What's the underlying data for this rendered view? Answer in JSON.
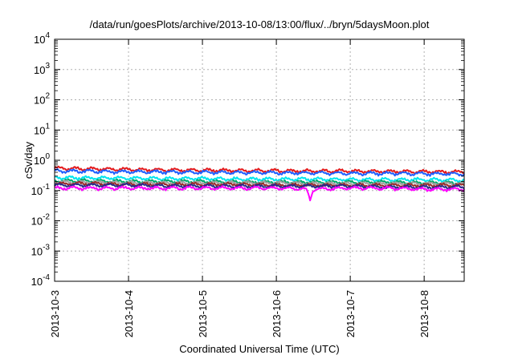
{
  "chart_data": {
    "type": "line",
    "title": "/data/run/goesPlots/archive/2013-10-08/13:00/flux/../bryn/5daysMoon.plot",
    "xlabel": "Coordinated Universal Time (UTC)",
    "ylabel": "cSv/day",
    "yscale": "log",
    "ylim": [
      0.0001,
      10000
    ],
    "xlim": [
      "2013-10-03",
      "2013-10-08 13:00"
    ],
    "grid": true,
    "x_tick_labels": [
      "2013-10-3",
      "2013-10-4",
      "2013-10-5",
      "2013-10-6",
      "2013-10-7",
      "2013-10-8"
    ],
    "y_tick_labels": [
      {
        "base": "10",
        "exp": "-4"
      },
      {
        "base": "10",
        "exp": "-3"
      },
      {
        "base": "10",
        "exp": "-2"
      },
      {
        "base": "10",
        "exp": "-1"
      },
      {
        "base": "10",
        "exp": "0"
      },
      {
        "base": "10",
        "exp": "1"
      },
      {
        "base": "10",
        "exp": "2"
      },
      {
        "base": "10",
        "exp": "3"
      },
      {
        "base": "10",
        "exp": "4"
      }
    ],
    "x": [
      "2013-10-03 00:00",
      "2013-10-03 12:00",
      "2013-10-04 00:00",
      "2013-10-04 12:00",
      "2013-10-05 00:00",
      "2013-10-05 12:00",
      "2013-10-06 00:00",
      "2013-10-06 12:00",
      "2013-10-07 00:00",
      "2013-10-07 12:00",
      "2013-10-08 00:00",
      "2013-10-08 12:00"
    ],
    "series": [
      {
        "color": "#e41a1c",
        "values": [
          0.55,
          0.52,
          0.5,
          0.48,
          0.47,
          0.46,
          0.45,
          0.44,
          0.44,
          0.43,
          0.42,
          0.41
        ]
      },
      {
        "color": "#1f5fff",
        "values": [
          0.45,
          0.43,
          0.42,
          0.41,
          0.4,
          0.39,
          0.39,
          0.38,
          0.37,
          0.37,
          0.36,
          0.35
        ]
      },
      {
        "color": "#00e5ee",
        "values": [
          0.27,
          0.26,
          0.26,
          0.25,
          0.25,
          0.24,
          0.24,
          0.24,
          0.23,
          0.23,
          0.23,
          0.22
        ]
      },
      {
        "color": "#00a86b",
        "values": [
          0.21,
          0.21,
          0.2,
          0.2,
          0.2,
          0.19,
          0.19,
          0.19,
          0.19,
          0.19,
          0.18,
          0.18
        ]
      },
      {
        "color": "#a0a0a0",
        "values": [
          0.19,
          0.19,
          0.18,
          0.18,
          0.18,
          0.18,
          0.18,
          0.17,
          0.17,
          0.17,
          0.17,
          0.17
        ]
      },
      {
        "color": "#9a2a2a",
        "values": [
          0.17,
          0.17,
          0.16,
          0.16,
          0.16,
          0.16,
          0.15,
          0.15,
          0.15,
          0.15,
          0.15,
          0.15
        ]
      },
      {
        "color": "#2a2a8a",
        "values": [
          0.15,
          0.15,
          0.15,
          0.14,
          0.14,
          0.14,
          0.14,
          0.14,
          0.14,
          0.13,
          0.13,
          0.13
        ]
      },
      {
        "color": "#ff00ff",
        "values": [
          0.12,
          0.12,
          0.12,
          0.12,
          0.12,
          0.12,
          0.12,
          0.11,
          0.12,
          0.12,
          0.11,
          0.11
        ]
      }
    ],
    "annotations": [
      {
        "series_color": "#ff00ff",
        "x": "2013-10-06 11:00",
        "y": 0.045,
        "note": "dip"
      }
    ]
  }
}
